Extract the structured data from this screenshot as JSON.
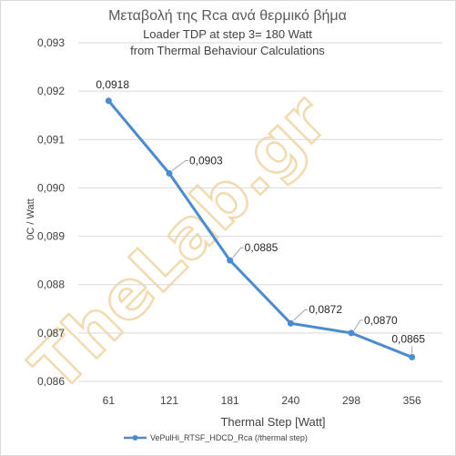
{
  "chart_data": {
    "type": "line",
    "title": "Μεταβολή της Rca ανά θερμικό βήμα",
    "subtitle_lines": [
      "Loader TDP at step 3= 180 Watt",
      "from  Thermal  Behaviour Calculations"
    ],
    "xlabel": "Thermal Step [Watt]",
    "ylabel": "0C / Watt",
    "categories": [
      "61",
      "121",
      "181",
      "240",
      "298",
      "356"
    ],
    "series": [
      {
        "name": "VePulHi_RTSF_HDCD_Rca (/thermal step)",
        "values": [
          0.0918,
          0.0903,
          0.0885,
          0.0872,
          0.087,
          0.0865
        ],
        "data_labels": [
          "0,0918",
          "0,0903",
          "0,0885",
          "0,0872",
          "0,0870",
          "0,0865"
        ],
        "color": "#4a8cd1"
      }
    ],
    "ylim": [
      0.086,
      0.093
    ],
    "yticks": [
      0.086,
      0.087,
      0.088,
      0.089,
      0.09,
      0.091,
      0.092,
      0.093
    ],
    "ytick_labels": [
      "0,086",
      "0,087",
      "0,088",
      "0,089",
      "0,090",
      "0,091",
      "0,092",
      "0,093"
    ],
    "grid": true,
    "legend_position": "bottom",
    "watermark": "TheLab.gr"
  }
}
